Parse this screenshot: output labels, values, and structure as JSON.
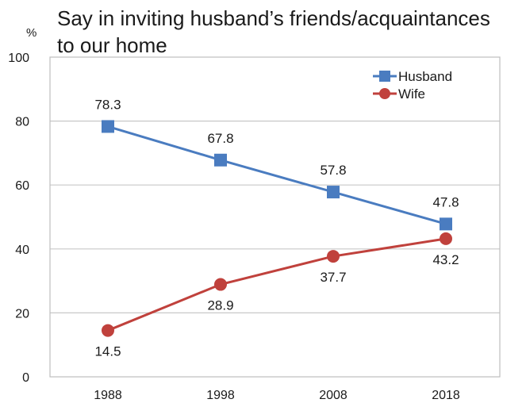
{
  "chart_data": {
    "type": "line",
    "title_lines": [
      "Say in inviting husband’s friends/acquaintances",
      "to our home"
    ],
    "unit": "%",
    "xlabel": "",
    "ylabel": "",
    "categories": [
      "1988",
      "1998",
      "2008",
      "2018"
    ],
    "ylim": [
      0,
      100
    ],
    "yticks": [
      0,
      20,
      40,
      60,
      80,
      100
    ],
    "grid": true,
    "legend_position": "top-right",
    "series": [
      {
        "name": "Husband",
        "values": [
          78.3,
          67.8,
          57.8,
          47.8
        ],
        "labels": [
          "78.3",
          "67.8",
          "57.8",
          "47.8"
        ],
        "color": "#4a7cc0",
        "marker": "square",
        "label_position": "above"
      },
      {
        "name": "Wife",
        "values": [
          14.5,
          28.9,
          37.7,
          43.2
        ],
        "labels": [
          "14.5",
          "28.9",
          "37.7",
          "43.2"
        ],
        "color": "#c0413c",
        "marker": "circle",
        "label_position": "below"
      }
    ]
  }
}
